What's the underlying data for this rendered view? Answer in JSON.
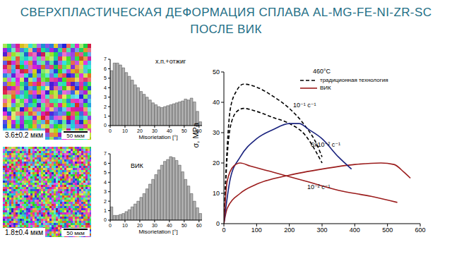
{
  "title": [
    "СВЕРХПЛАСТИЧЕСКАЯ ДЕФОРМАЦИЯ СПЛАВА AL-MG-FE-NI-ZR-SC",
    "ПОСЛЕ ВИК"
  ],
  "images": [
    {
      "caption": "3.6±0.2 мкм",
      "scale_bar": "50 мкм"
    },
    {
      "caption": "1.8±0.4 мкм",
      "scale_bar": "50 мкм"
    }
  ],
  "chart_data": [
    {
      "type": "histogram",
      "title": "х.п.+отжиг",
      "x_label": "Misorietation [°]",
      "color": "#b0b0b0",
      "grid": false,
      "bins": [
        0,
        2,
        4,
        6,
        8,
        10,
        12,
        14,
        16,
        18,
        20,
        22,
        24,
        26,
        28,
        30,
        32,
        34,
        36,
        38,
        40,
        42,
        44,
        46,
        48,
        50,
        52,
        54,
        56,
        58,
        60,
        62
      ],
      "counts": [
        5.8,
        6.6,
        6.6,
        6.4,
        6.1,
        5.6,
        5.2,
        4.8,
        4.3,
        4.0,
        3.6,
        3.3,
        3.0,
        2.7,
        2.4,
        2.2,
        2.0,
        1.9,
        2.0,
        2.1,
        2.2,
        2.3,
        2.4,
        2.5,
        2.6,
        2.8,
        2.7,
        2.9,
        2.5,
        1.5,
        0.4
      ],
      "xlim": [
        0,
        62
      ],
      "xticks": [
        0,
        10,
        20,
        30,
        40,
        50,
        60
      ],
      "ylim": [
        0,
        7
      ],
      "yticks": [
        0,
        1,
        2,
        3,
        4,
        5,
        6,
        7
      ]
    },
    {
      "type": "histogram",
      "title": "ВИК",
      "x_label": "Misorietation [°]",
      "color": "#b0b0b0",
      "grid": false,
      "bins": [
        0,
        2,
        4,
        6,
        8,
        10,
        12,
        14,
        16,
        18,
        20,
        22,
        24,
        26,
        28,
        30,
        32,
        34,
        36,
        38,
        40,
        42,
        44,
        46,
        48,
        50,
        52,
        54,
        56,
        58,
        60,
        62
      ],
      "counts": [
        1.4,
        0.5,
        0.5,
        0.6,
        0.7,
        0.9,
        1.1,
        1.4,
        1.7,
        2.0,
        2.4,
        2.8,
        3.3,
        3.8,
        4.3,
        4.8,
        5.3,
        5.8,
        6.2,
        6.4,
        6.7,
        6.6,
        6.3,
        5.8,
        5.1,
        4.3,
        3.6,
        2.8,
        2.0,
        1.3,
        0.7
      ],
      "xlim": [
        0,
        62
      ],
      "xticks": [
        0,
        10,
        20,
        30,
        40,
        50,
        60
      ],
      "ylim": [
        0,
        7
      ],
      "yticks": [
        0,
        1,
        2,
        3,
        4,
        5,
        6,
        7
      ]
    },
    {
      "type": "line",
      "subtitle": "460°C",
      "y_label": "σ, MPa",
      "legend": "upper right",
      "grid": false,
      "xlim": [
        0,
        600
      ],
      "xticks": [
        0,
        100,
        200,
        300,
        400,
        500,
        600
      ],
      "ylim": [
        0,
        50
      ],
      "yticks": [
        0,
        10,
        20,
        30,
        40,
        50
      ],
      "annotations": [
        "10⁻¹ с⁻¹",
        "6x10⁻² с⁻¹",
        "10⁻² с⁻¹"
      ],
      "series": [
        {
          "name": "традиционная технология",
          "color": "#000000",
          "line_style": "dashed",
          "x": [
            0,
            10,
            20,
            40,
            60,
            100,
            150,
            200,
            250,
            280,
            300
          ],
          "values": [
            0,
            25,
            38,
            44,
            46,
            45,
            42,
            38,
            32,
            27,
            22
          ]
        },
        {
          "name": "традиционная технология",
          "color": "#000000",
          "line_style": "dashed",
          "x": [
            0,
            10,
            20,
            40,
            60,
            100,
            150,
            200,
            250,
            280,
            300
          ],
          "values": [
            0,
            22,
            32,
            37,
            38,
            37,
            35,
            33,
            29,
            24,
            20
          ]
        },
        {
          "name": "ВИК",
          "color": "#9b1c1c",
          "line_style": "solid",
          "x": [
            0,
            10,
            50,
            100,
            200,
            300,
            400,
            480,
            520,
            550,
            570
          ],
          "values": [
            0,
            5,
            10,
            13,
            16,
            18,
            19.5,
            20,
            19.5,
            17,
            15
          ]
        },
        {
          "name": "ВИК",
          "color": "#1a237e",
          "line_style": "solid",
          "x": [
            0,
            20,
            50,
            100,
            150,
            200,
            230,
            260,
            300,
            350,
            390
          ],
          "values": [
            0,
            15,
            22,
            28,
            31,
            33,
            33,
            31,
            28,
            22,
            18
          ]
        },
        {
          "name": "ВИК",
          "color": "#9b1c1c",
          "line_style": "solid",
          "x": [
            0,
            10,
            30,
            50,
            80,
            150,
            250,
            350,
            450,
            530
          ],
          "values": [
            0,
            14,
            19,
            20,
            19,
            17,
            14,
            11,
            9,
            7
          ]
        }
      ]
    }
  ]
}
